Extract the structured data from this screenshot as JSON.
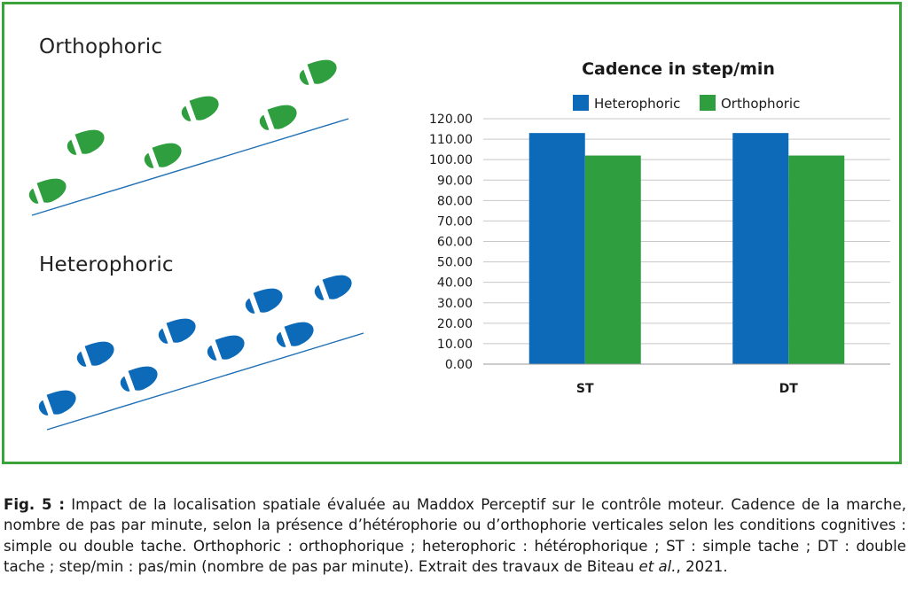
{
  "panels": {
    "orthophoric_label": "Orthophoric",
    "heterophoric_label": "Heterophoric",
    "ortho_icon": "footprint-icon",
    "hetero_icon": "footprint-icon"
  },
  "chart_data": {
    "type": "bar",
    "title": "Cadence in step/min",
    "categories": [
      "ST",
      "DT"
    ],
    "series": [
      {
        "name": "Heterophoric",
        "values": [
          113,
          113
        ],
        "color": "#0d6ab8"
      },
      {
        "name": "Orthophoric",
        "values": [
          102,
          102
        ],
        "color": "#2e9e3e"
      }
    ],
    "ylim": [
      0,
      120
    ],
    "yticks": [
      "0.00",
      "10.00",
      "20.00",
      "30.00",
      "40.00",
      "50.00",
      "60.00",
      "70.00",
      "80.00",
      "90.00",
      "100.00",
      "110.00",
      "120.00"
    ],
    "grid": true,
    "legend_position": "top"
  },
  "colors": {
    "frame": "#3aa43a",
    "foot_green": "#2e9e3e",
    "foot_blue": "#0d6ab8",
    "path_line": "#1f6fb5"
  },
  "caption": {
    "fig_ref": "Fig. 5 :",
    "text_1": " Impact de la localisation spatiale évaluée au Maddox Perceptif sur le contrôle moteur. Cadence de la marche, nombre de pas par minute, selon la présence d’hétérophorie ou d’orthophorie verticales selon les conditions cognitives : simple ou double tache. Orthophoric : orthophorique ; heterophoric : hétérophorique ; ST : simple tache ; DT : double tache ; step/min : pas/min (nombre de pas par minute). Extrait des travaux de Biteau ",
    "et_al": "et al.",
    "text_2": ", 2021."
  }
}
